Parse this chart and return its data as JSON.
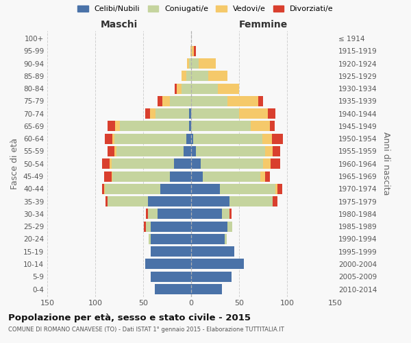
{
  "age_groups": [
    "0-4",
    "5-9",
    "10-14",
    "15-19",
    "20-24",
    "25-29",
    "30-34",
    "35-39",
    "40-44",
    "45-49",
    "50-54",
    "55-59",
    "60-64",
    "65-69",
    "70-74",
    "75-79",
    "80-84",
    "85-89",
    "90-94",
    "95-99",
    "100+"
  ],
  "birth_years": [
    "2010-2014",
    "2005-2009",
    "2000-2004",
    "1995-1999",
    "1990-1994",
    "1985-1989",
    "1980-1984",
    "1975-1979",
    "1970-1974",
    "1965-1969",
    "1960-1964",
    "1955-1959",
    "1950-1954",
    "1945-1949",
    "1940-1944",
    "1935-1939",
    "1930-1934",
    "1925-1929",
    "1920-1924",
    "1915-1919",
    "≤ 1914"
  ],
  "colors": {
    "celibi": "#4a72a8",
    "coniugati": "#c5d49e",
    "vedovi": "#f5c96a",
    "divorziati": "#d93f2e"
  },
  "males": {
    "celibi": [
      38,
      42,
      48,
      42,
      42,
      42,
      35,
      45,
      32,
      22,
      18,
      8,
      5,
      2,
      2,
      0,
      0,
      0,
      0,
      0,
      0
    ],
    "coniugati": [
      0,
      0,
      0,
      0,
      2,
      5,
      10,
      42,
      58,
      60,
      65,
      70,
      75,
      72,
      35,
      22,
      10,
      5,
      2,
      0,
      0
    ],
    "vedovi": [
      0,
      0,
      0,
      0,
      0,
      0,
      0,
      0,
      1,
      1,
      2,
      2,
      2,
      5,
      6,
      8,
      5,
      5,
      2,
      1,
      0
    ],
    "divorziati": [
      0,
      0,
      0,
      0,
      0,
      2,
      2,
      2,
      2,
      8,
      8,
      7,
      8,
      8,
      5,
      5,
      2,
      0,
      0,
      0,
      0
    ]
  },
  "females": {
    "nubili": [
      32,
      42,
      55,
      45,
      35,
      38,
      32,
      40,
      30,
      12,
      10,
      5,
      2,
      0,
      0,
      0,
      0,
      0,
      0,
      0,
      0
    ],
    "coniugate": [
      0,
      0,
      0,
      0,
      2,
      5,
      8,
      45,
      58,
      60,
      65,
      72,
      72,
      62,
      50,
      38,
      28,
      18,
      8,
      1,
      0
    ],
    "vedove": [
      0,
      0,
      0,
      0,
      0,
      0,
      0,
      0,
      2,
      5,
      8,
      8,
      10,
      20,
      30,
      32,
      22,
      20,
      18,
      2,
      0
    ],
    "divorziate": [
      0,
      0,
      0,
      0,
      0,
      0,
      2,
      5,
      5,
      5,
      10,
      8,
      12,
      5,
      8,
      5,
      0,
      0,
      0,
      2,
      0
    ]
  },
  "title": "Popolazione per età, sesso e stato civile - 2015",
  "subtitle": "COMUNE DI ROMANO CANAVESE (TO) - Dati ISTAT 1° gennaio 2015 - Elaborazione TUTTITALIA.IT",
  "maschi_label": "Maschi",
  "femmine_label": "Femmine",
  "ylabel_left": "Fasce di età",
  "ylabel_right": "Anni di nascita",
  "legend_labels": [
    "Celibi/Nubili",
    "Coniugati/e",
    "Vedovi/e",
    "Divorziati/e"
  ],
  "xlim": 150,
  "background_color": "#f8f8f8",
  "grid_color": "#cccccc"
}
